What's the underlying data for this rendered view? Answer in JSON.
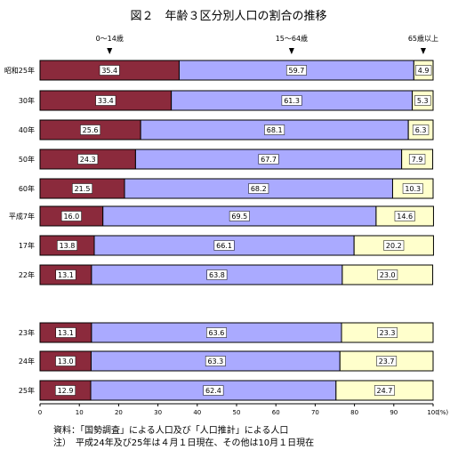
{
  "colors": {
    "age_0_14": "#8b2a3c",
    "age_15_64": "#aaaaff",
    "age_65_plus": "#ffffcc",
    "border": "#000000"
  },
  "chart_data": {
    "type": "bar",
    "orientation": "horizontal",
    "stacked": true,
    "title": "図２　年齢３区分別人口の割合の推移",
    "categories": [
      "昭和25年",
      "30年",
      "40年",
      "50年",
      "60年",
      "平成7年",
      "17年",
      "22年",
      "23年",
      "24年",
      "25年"
    ],
    "series": [
      {
        "name": "0～14歳",
        "values": [
          35.4,
          33.4,
          25.6,
          24.3,
          21.5,
          16.0,
          13.8,
          13.1,
          13.1,
          13.0,
          12.9
        ],
        "labels": [
          "35.4",
          "33.4",
          "25.6",
          "24.3",
          "21.5",
          "16.0",
          "13.8",
          "13.1",
          "13.1",
          "13.0",
          "12.9"
        ]
      },
      {
        "name": "15～64歳",
        "values": [
          59.7,
          61.3,
          68.1,
          67.7,
          68.2,
          69.5,
          66.1,
          63.8,
          63.6,
          63.3,
          62.4
        ],
        "labels": [
          "59.7",
          "61.3",
          "68.1",
          "67.7",
          "68.2",
          "69.5",
          "66.1",
          "63.8",
          "63.6",
          "63.3",
          "62.4"
        ]
      },
      {
        "name": "65歳以上",
        "values": [
          4.9,
          5.3,
          6.3,
          7.9,
          10.3,
          14.6,
          20.2,
          23.0,
          23.3,
          23.7,
          24.7
        ],
        "labels": [
          "4.9",
          "5.3",
          "6.3",
          "7.9",
          "10.3",
          "14.6",
          "20.2",
          "23.0",
          "23.3",
          "23.7",
          "24.7"
        ]
      }
    ],
    "xlim": [
      0,
      100
    ],
    "xticks": [
      "0",
      "10",
      "20",
      "30",
      "40",
      "50",
      "60",
      "70",
      "80",
      "90",
      "100"
    ],
    "x_unit": "(%)",
    "legend": "top, arrow labels",
    "grid": false
  },
  "notes": {
    "source": "資料：「国勢調査」による人口及び「人口推計」による人口",
    "note": "注）　平成24年及び25年は４月１日現在、その他は10月１日現在"
  }
}
